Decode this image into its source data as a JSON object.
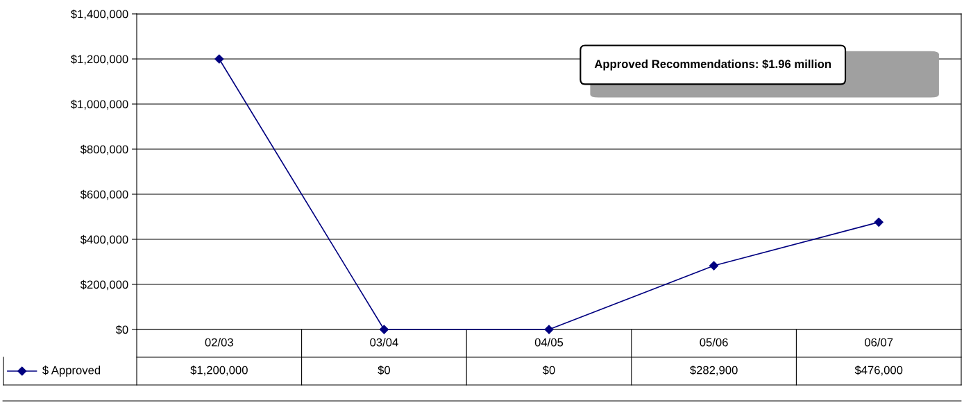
{
  "chart_data": {
    "type": "line",
    "categories": [
      "02/03",
      "03/04",
      "04/05",
      "05/06",
      "06/07"
    ],
    "series": [
      {
        "name": "$ Approved",
        "color": "#000080",
        "values": [
          1200000,
          0,
          0,
          282900,
          476000
        ],
        "value_labels": [
          "$1,200,000",
          "$0",
          "$0",
          "$282,900",
          "$476,000"
        ]
      }
    ],
    "ylim": [
      0,
      1400000
    ],
    "yticks": [
      {
        "value": 0,
        "label": "$0"
      },
      {
        "value": 200000,
        "label": "$200,000"
      },
      {
        "value": 400000,
        "label": "$400,000"
      },
      {
        "value": 600000,
        "label": "$600,000"
      },
      {
        "value": 800000,
        "label": "$800,000"
      },
      {
        "value": 1000000,
        "label": "$1,000,000"
      },
      {
        "value": 1200000,
        "label": "$1,200,000"
      },
      {
        "value": 1400000,
        "label": "$1,400,000"
      }
    ],
    "grid": "y",
    "marker": "diamond",
    "line_style": "solid",
    "legend": "bottom left",
    "annotations": [
      "Approved Recommendations: $1.96 million"
    ]
  }
}
